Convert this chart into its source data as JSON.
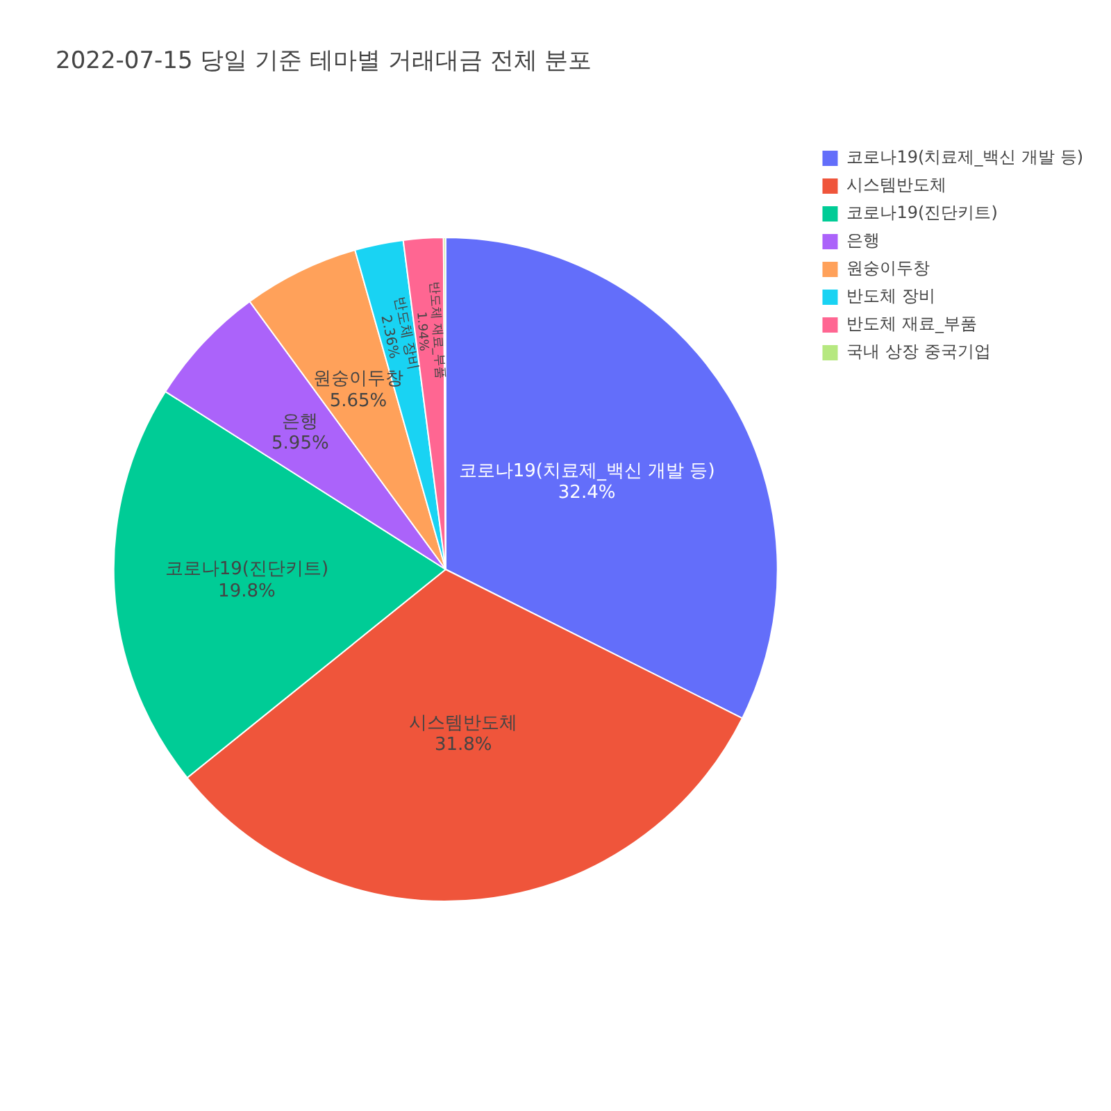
{
  "chart_data": {
    "type": "pie",
    "title": "2022-07-15 당일 기준 테마별 거래대금 전체 분포",
    "categories": [
      "코로나19(치료제_백신 개발 등)",
      "시스템반도체",
      "코로나19(진단키트)",
      "은행",
      "원숭이두창",
      "반도체 장비",
      "반도체 재료_부품",
      "국내 상장 중국기업"
    ],
    "values": [
      32.4,
      31.8,
      19.8,
      5.95,
      5.65,
      2.36,
      1.94,
      0.1
    ],
    "colors": [
      "#636efa",
      "#ef553b",
      "#00cc96",
      "#ab63fa",
      "#ffa15a",
      "#19d3f3",
      "#ff6692",
      "#b6e880"
    ],
    "value_labels": [
      "32.4%",
      "31.8%",
      "19.8%",
      "5.95%",
      "5.65%",
      "2.36%",
      "1.94%",
      null
    ],
    "legend": "top right"
  }
}
